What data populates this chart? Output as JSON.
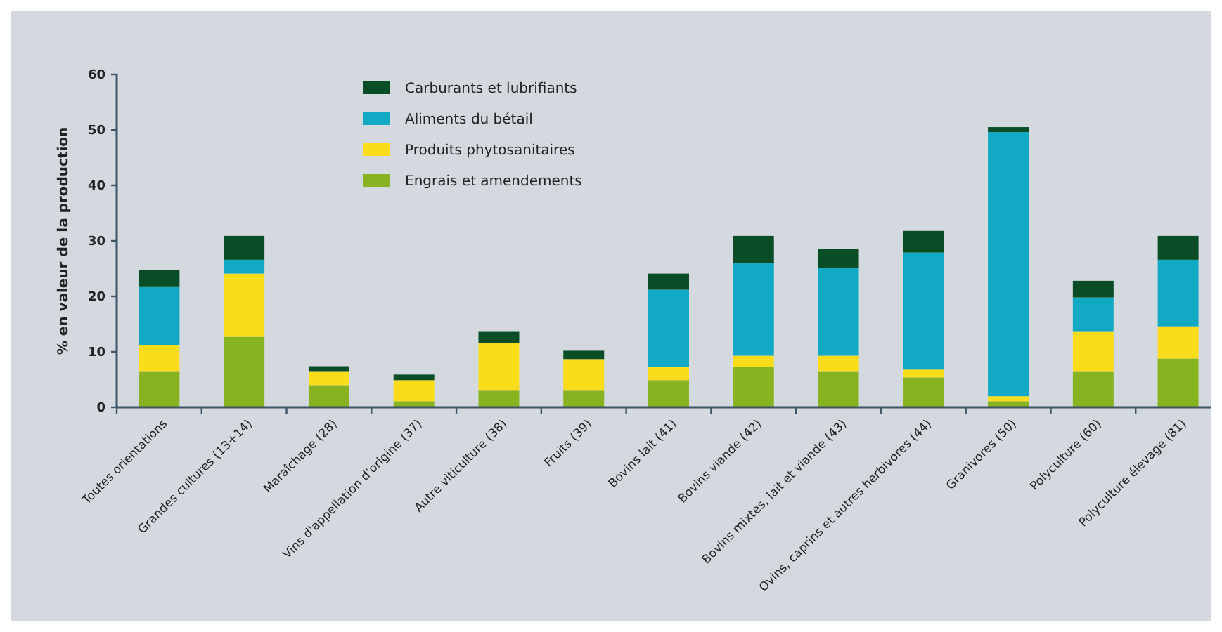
{
  "chart_data": {
    "type": "bar",
    "stacked": true,
    "ylabel": "% en valeur de la production",
    "categories": [
      "Toutes orientations",
      "Grandes cultures (13+14)",
      "Maraîchage (28)",
      "Vins d'appellation d'origine (37)",
      "Autre viticulture (38)",
      "Fruits (39)",
      "Bovins lait (41)",
      "Bovins viande (42)",
      "Bovins mixtes, lait et viande (43)",
      "Ovins, caprins et autres herbivores (44)",
      "Granivores (50)",
      "Polyculture (60)",
      "Polyculture élevage (81)"
    ],
    "series": [
      {
        "name": "Engrais et amendements",
        "color": "#86b31f",
        "values": [
          6.4,
          12.7,
          4.0,
          1.1,
          3.0,
          3.0,
          4.9,
          7.3,
          6.4,
          5.4,
          1.1,
          6.4,
          8.8
        ]
      },
      {
        "name": "Produits phytosanitaires",
        "color": "#fbdc1b",
        "values": [
          4.8,
          11.4,
          2.4,
          3.8,
          8.6,
          5.7,
          2.4,
          2.0,
          2.9,
          1.4,
          0.9,
          7.2,
          5.8
        ]
      },
      {
        "name": "Aliments du bétail",
        "color": "#12a9c4",
        "values": [
          10.6,
          2.5,
          0,
          0,
          0,
          0,
          13.9,
          16.7,
          15.8,
          21.1,
          47.6,
          6.2,
          12.0
        ]
      },
      {
        "name": "Carburants et lubrifiants",
        "color": "#084d25",
        "values": [
          2.9,
          4.3,
          1.0,
          1.0,
          2.0,
          1.5,
          2.9,
          4.9,
          3.4,
          3.9,
          0.9,
          3.0,
          4.3
        ]
      }
    ],
    "ylim": [
      0,
      60
    ],
    "yticks": [
      0,
      10,
      20,
      30,
      40,
      50,
      60
    ],
    "grid": false,
    "legend": "top left"
  }
}
